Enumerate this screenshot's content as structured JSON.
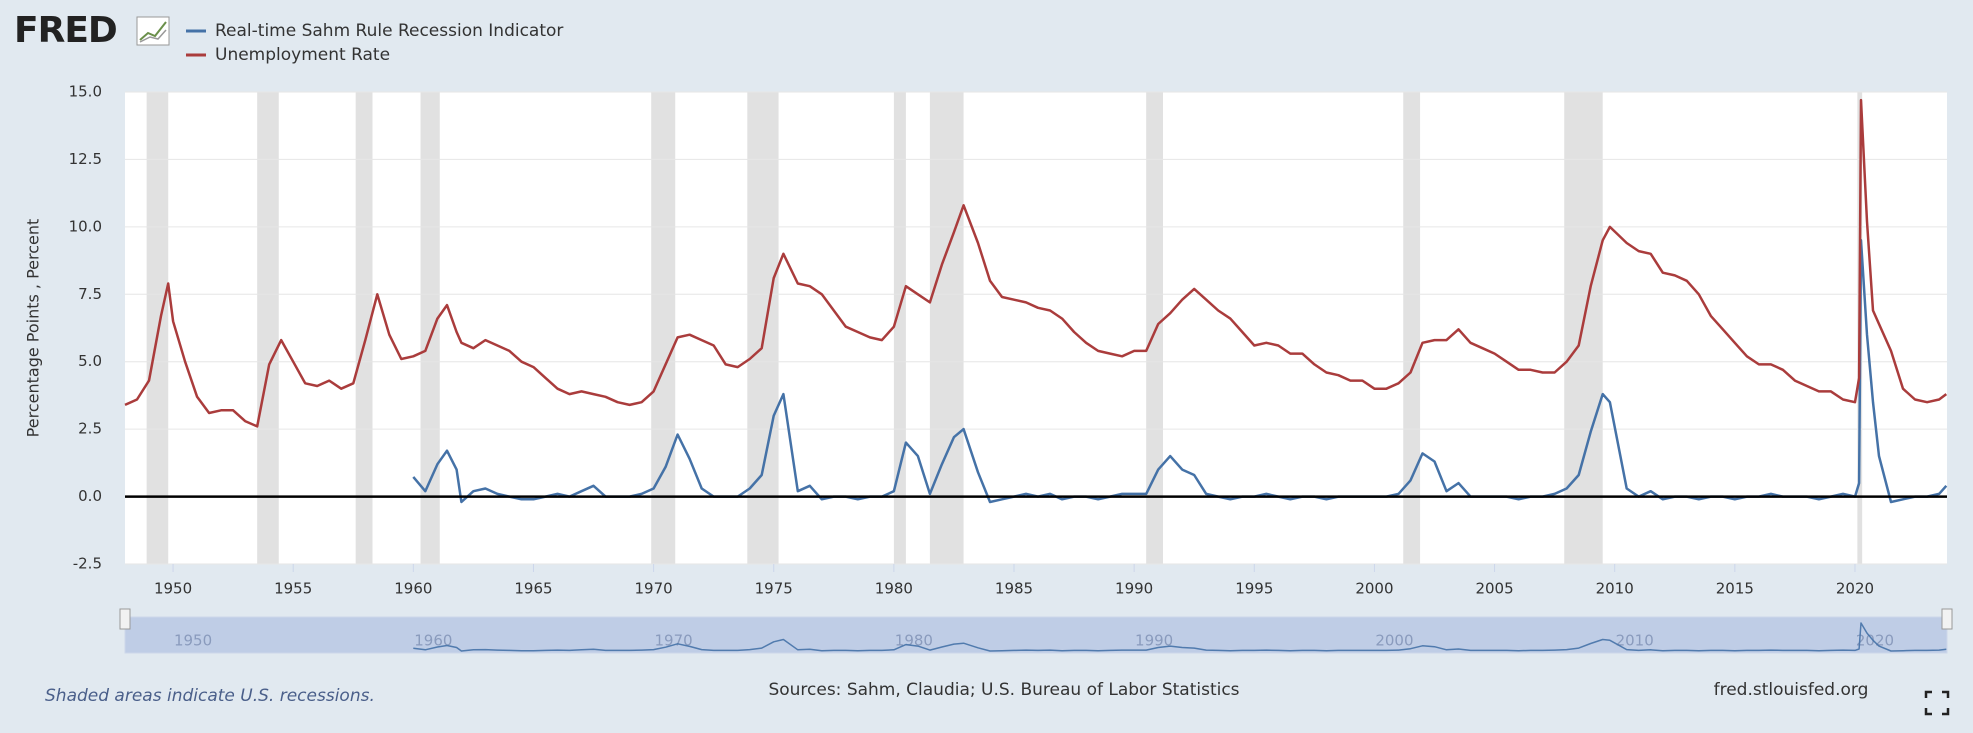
{
  "chart_data": {
    "type": "line",
    "logo": "FRED",
    "y_label": "Percentage Points , Percent",
    "note": "Shaded areas indicate U.S. recessions.",
    "source": "Sources: Sahm, Claudia; U.S. Bureau of Labor Statistics",
    "site": "fred.stlouisfed.org",
    "xlim": [
      1948,
      2023.83
    ],
    "ylim": [
      -2.5,
      15
    ],
    "xticks": [
      1950,
      1955,
      1960,
      1965,
      1970,
      1975,
      1980,
      1985,
      1990,
      1995,
      2000,
      2005,
      2010,
      2015,
      2020
    ],
    "yticks": [
      {
        "value": -2.5,
        "label": "-2.5"
      },
      {
        "value": 0,
        "label": "0.0"
      },
      {
        "value": 2.5,
        "label": "2.5"
      },
      {
        "value": 5,
        "label": "5.0"
      },
      {
        "value": 7.5,
        "label": "7.5"
      },
      {
        "value": 10,
        "label": "10.0"
      },
      {
        "value": 12.5,
        "label": "12.5"
      },
      {
        "value": 15,
        "label": "15.0"
      }
    ],
    "navigator_ticks": [
      1950,
      1960,
      1970,
      1980,
      1990,
      2000,
      2010,
      2020
    ],
    "grid": true,
    "recessions": [
      [
        1948.9,
        1949.8
      ],
      [
        1953.5,
        1954.4
      ],
      [
        1957.6,
        1958.3
      ],
      [
        1960.3,
        1961.1
      ],
      [
        1969.9,
        1970.9
      ],
      [
        1973.9,
        1975.2
      ],
      [
        1980.0,
        1980.5
      ],
      [
        1981.5,
        1982.9
      ],
      [
        1990.5,
        1991.2
      ],
      [
        2001.2,
        2001.9
      ],
      [
        2007.9,
        2009.5
      ],
      [
        2020.1,
        2020.3
      ]
    ],
    "x": [
      1948,
      1948.5,
      1949,
      1949.5,
      1949.8,
      1950,
      1950.5,
      1951,
      1951.5,
      1952,
      1952.5,
      1953,
      1953.5,
      1954,
      1954.5,
      1955,
      1955.5,
      1956,
      1956.5,
      1957,
      1957.5,
      1958,
      1958.5,
      1959,
      1959.5,
      1960,
      1960.5,
      1961,
      1961.4,
      1961.8,
      1962,
      1962.5,
      1963,
      1963.5,
      1964,
      1964.5,
      1965,
      1965.5,
      1966,
      1966.5,
      1967,
      1967.5,
      1968,
      1968.5,
      1969,
      1969.5,
      1970,
      1970.5,
      1971,
      1971.5,
      1972,
      1972.5,
      1973,
      1973.5,
      1974,
      1974.5,
      1975,
      1975.4,
      1976,
      1976.5,
      1977,
      1977.5,
      1978,
      1978.5,
      1979,
      1979.5,
      1980,
      1980.5,
      1981,
      1981.5,
      1982,
      1982.5,
      1982.9,
      1983.5,
      1984,
      1984.5,
      1985,
      1985.5,
      1986,
      1986.5,
      1987,
      1987.5,
      1988,
      1988.5,
      1989,
      1989.5,
      1990,
      1990.5,
      1991,
      1991.5,
      1992,
      1992.5,
      1993,
      1993.5,
      1994,
      1994.5,
      1995,
      1995.5,
      1996,
      1996.5,
      1997,
      1997.5,
      1998,
      1998.5,
      1999,
      1999.5,
      2000,
      2000.5,
      2001,
      2001.5,
      2002,
      2002.5,
      2003,
      2003.5,
      2004,
      2004.5,
      2005,
      2005.5,
      2006,
      2006.5,
      2007,
      2007.5,
      2008,
      2008.5,
      2009,
      2009.5,
      2009.8,
      2010.5,
      2011,
      2011.5,
      2012,
      2012.5,
      2013,
      2013.5,
      2014,
      2014.5,
      2015,
      2015.5,
      2016,
      2016.5,
      2017,
      2017.5,
      2018,
      2018.5,
      2019,
      2019.5,
      2020,
      2020.17,
      2020.25,
      2020.5,
      2020.75,
      2021,
      2021.5,
      2022,
      2022.5,
      2023,
      2023.5,
      2023.8
    ],
    "series": [
      {
        "name": "Real-time Sahm Rule Recession Indicator",
        "color": "#4572a7",
        "values": [
          null,
          null,
          null,
          null,
          null,
          null,
          null,
          null,
          null,
          null,
          null,
          null,
          null,
          null,
          null,
          null,
          null,
          null,
          null,
          null,
          null,
          null,
          null,
          null,
          null,
          0.73,
          0.2,
          1.2,
          1.7,
          1.0,
          -0.2,
          0.2,
          0.3,
          0.1,
          0.0,
          -0.1,
          -0.1,
          0.0,
          0.1,
          0.0,
          0.2,
          0.4,
          0.0,
          0.0,
          0.0,
          0.1,
          0.3,
          1.1,
          2.3,
          1.4,
          0.3,
          0.0,
          0.0,
          0.0,
          0.3,
          0.8,
          3.0,
          3.8,
          0.2,
          0.4,
          -0.1,
          0.0,
          0.0,
          -0.1,
          0.0,
          0.0,
          0.2,
          2.0,
          1.5,
          0.1,
          1.2,
          2.2,
          2.5,
          0.9,
          -0.2,
          -0.1,
          0.0,
          0.1,
          0.0,
          0.1,
          -0.1,
          0.0,
          0.0,
          -0.1,
          0.0,
          0.1,
          0.1,
          0.1,
          1.0,
          1.5,
          1.0,
          0.8,
          0.1,
          0.0,
          -0.1,
          0.0,
          0.0,
          0.1,
          0.0,
          -0.1,
          0.0,
          0.0,
          -0.1,
          0.0,
          0.0,
          0.0,
          0.0,
          0.0,
          0.1,
          0.6,
          1.6,
          1.3,
          0.2,
          0.5,
          0.0,
          0.0,
          0.0,
          0.0,
          -0.1,
          0.0,
          0.0,
          0.1,
          0.3,
          0.8,
          2.4,
          3.8,
          3.5,
          0.3,
          0.0,
          0.2,
          -0.1,
          0.0,
          0.0,
          -0.1,
          0.0,
          0.0,
          -0.1,
          0.0,
          0.0,
          0.1,
          0.0,
          0.0,
          0.0,
          -0.1,
          0.0,
          0.1,
          0.0,
          0.5,
          9.5,
          6.0,
          3.5,
          1.5,
          -0.2,
          -0.1,
          0.0,
          0.0,
          0.1,
          0.4
        ]
      },
      {
        "name": "Unemployment Rate",
        "color": "#aa3c3c",
        "values": [
          3.4,
          3.6,
          4.3,
          6.7,
          7.9,
          6.5,
          5.0,
          3.7,
          3.1,
          3.2,
          3.2,
          2.8,
          2.6,
          4.9,
          5.8,
          5.0,
          4.2,
          4.1,
          4.3,
          4.0,
          4.2,
          5.8,
          7.5,
          6.0,
          5.1,
          5.2,
          5.4,
          6.6,
          7.1,
          6.1,
          5.7,
          5.5,
          5.8,
          5.6,
          5.4,
          5.0,
          4.8,
          4.4,
          4.0,
          3.8,
          3.9,
          3.8,
          3.7,
          3.5,
          3.4,
          3.5,
          3.9,
          4.9,
          5.9,
          6.0,
          5.8,
          5.6,
          4.9,
          4.8,
          5.1,
          5.5,
          8.1,
          9.0,
          7.9,
          7.8,
          7.5,
          6.9,
          6.3,
          6.1,
          5.9,
          5.8,
          6.3,
          7.8,
          7.5,
          7.2,
          8.6,
          9.8,
          10.8,
          9.4,
          8.0,
          7.4,
          7.3,
          7.2,
          7.0,
          6.9,
          6.6,
          6.1,
          5.7,
          5.4,
          5.3,
          5.2,
          5.4,
          5.4,
          6.4,
          6.8,
          7.3,
          7.7,
          7.3,
          6.9,
          6.6,
          6.1,
          5.6,
          5.7,
          5.6,
          5.3,
          5.3,
          4.9,
          4.6,
          4.5,
          4.3,
          4.3,
          4.0,
          4.0,
          4.2,
          4.6,
          5.7,
          5.8,
          5.8,
          6.2,
          5.7,
          5.5,
          5.3,
          5.0,
          4.7,
          4.7,
          4.6,
          4.6,
          5.0,
          5.6,
          7.8,
          9.5,
          10.0,
          9.4,
          9.1,
          9.0,
          8.3,
          8.2,
          8.0,
          7.5,
          6.7,
          6.2,
          5.7,
          5.2,
          4.9,
          4.9,
          4.7,
          4.3,
          4.1,
          3.9,
          3.9,
          3.6,
          3.5,
          4.4,
          14.7,
          10.2,
          6.9,
          6.4,
          5.4,
          4.0,
          3.6,
          3.5,
          3.6,
          3.8
        ]
      }
    ]
  }
}
